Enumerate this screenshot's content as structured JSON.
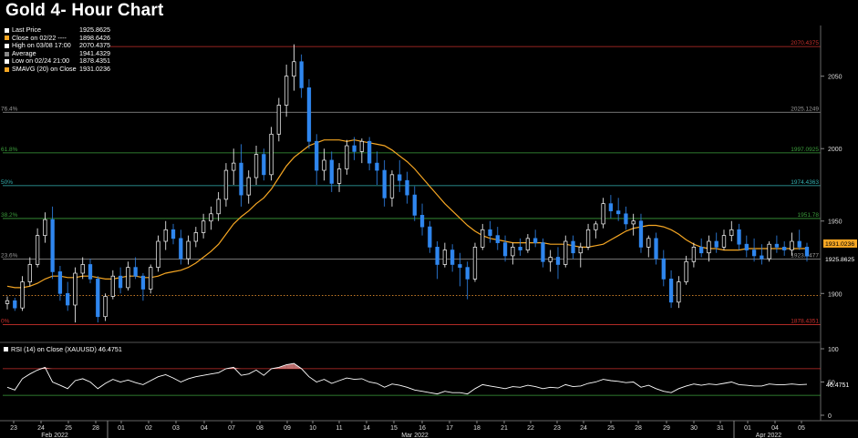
{
  "title": "Gold 4- Hour Chart",
  "legend": [
    {
      "label": "Last Price",
      "value": "1925.8625",
      "color": "#ffffff"
    },
    {
      "label": "Close on 02/22 ----",
      "value": "1898.6426",
      "color": "#f5a623"
    },
    {
      "label": "High on 03/08 17:00",
      "value": "2070.4375",
      "color": "#ffffff"
    },
    {
      "label": "Average",
      "value": "1941.4329",
      "color": "#888888"
    },
    {
      "label": "Low on 02/24 21:00",
      "value": "1878.4351",
      "color": "#ffffff"
    },
    {
      "label": "SMAVG (20)  on Close",
      "value": "1931.0236",
      "color": "#f5a623"
    }
  ],
  "rsi_legend": {
    "label": "RSI (14)  on Close (XAUUSD)",
    "value": "46.4751"
  },
  "colors": {
    "up": "#ffffff",
    "down": "#2f86ee",
    "sma": "#f5a623",
    "rsi": "#ffffff",
    "bg": "#000000"
  },
  "chart_data": [
    {
      "type": "candlestick",
      "x_tick_labels": [
        "23",
        "24",
        "25",
        "28",
        "01",
        "02",
        "03",
        "04",
        "07",
        "08",
        "09",
        "10",
        "11",
        "14",
        "15",
        "16",
        "17",
        "18",
        "21",
        "22",
        "23",
        "24",
        "25",
        "28",
        "29",
        "30",
        "31",
        "01",
        "04",
        "05"
      ],
      "x_month_labels": [
        "Feb 2022",
        "Mar 2022",
        "Apr 2022"
      ],
      "y_ticks": [
        1900,
        1950,
        2000,
        2050
      ],
      "ylim": [
        1870,
        2085
      ],
      "levels": [
        {
          "label": "",
          "value": "2070.4375",
          "color": "#c9302c",
          "y": 2070.44
        },
        {
          "label": "76.4%",
          "value": "2025.1249",
          "color": "#9a9a9a",
          "y": 2025.12
        },
        {
          "label": "61.8%",
          "value": "1997.0925",
          "color": "#3c9e3c",
          "y": 1997.09
        },
        {
          "label": "50%",
          "value": "1974.4363",
          "color": "#35b3b3",
          "y": 1974.44
        },
        {
          "label": "38.2%",
          "value": "1951.78",
          "color": "#3c9e3c",
          "y": 1951.78
        },
        {
          "label": "23.6%",
          "value": "1923.7477",
          "color": "#9a9a9a",
          "y": 1923.75
        },
        {
          "label": "",
          "value": "",
          "color": "#e08a2c",
          "y": 1898.64,
          "style": "dotted"
        },
        {
          "label": "0%",
          "value": "1878.4351",
          "color": "#c9302c",
          "y": 1878.44
        }
      ],
      "price_labels": [
        {
          "value": "1931.0236",
          "bg": "#f5a623",
          "fg": "#000000",
          "y": 1931.02
        },
        {
          "value": "1925.8625",
          "bg": "#000000",
          "fg": "#ffffff",
          "y": 1925.86
        }
      ],
      "candles_ohlc": [
        [
          1893,
          1898,
          1889,
          1895
        ],
        [
          1895,
          1897,
          1888,
          1890
        ],
        [
          1890,
          1912,
          1888,
          1908
        ],
        [
          1908,
          1925,
          1905,
          1920
        ],
        [
          1920,
          1945,
          1918,
          1940
        ],
        [
          1940,
          1956,
          1935,
          1951
        ],
        [
          1951,
          1960,
          1910,
          1915
        ],
        [
          1915,
          1919,
          1895,
          1900
        ],
        [
          1900,
          1908,
          1888,
          1892
        ],
        [
          1892,
          1918,
          1880,
          1914
        ],
        [
          1914,
          1925,
          1910,
          1920
        ],
        [
          1920,
          1924,
          1907,
          1910
        ],
        [
          1910,
          1912,
          1880,
          1884
        ],
        [
          1884,
          1900,
          1881,
          1898
        ],
        [
          1898,
          1916,
          1896,
          1912
        ],
        [
          1912,
          1918,
          1900,
          1904
        ],
        [
          1904,
          1922,
          1902,
          1918
        ],
        [
          1918,
          1925,
          1910,
          1912
        ],
        [
          1912,
          1914,
          1895,
          1903
        ],
        [
          1903,
          1920,
          1900,
          1918
        ],
        [
          1918,
          1940,
          1915,
          1936
        ],
        [
          1936,
          1950,
          1930,
          1944
        ],
        [
          1944,
          1948,
          1934,
          1938
        ],
        [
          1938,
          1944,
          1920,
          1924
        ],
        [
          1924,
          1940,
          1920,
          1936
        ],
        [
          1936,
          1946,
          1932,
          1942
        ],
        [
          1942,
          1955,
          1938,
          1950
        ],
        [
          1950,
          1960,
          1944,
          1955
        ],
        [
          1955,
          1970,
          1950,
          1965
        ],
        [
          1965,
          1990,
          1960,
          1985
        ],
        [
          1985,
          2000,
          1975,
          1990
        ],
        [
          1990,
          2003,
          1960,
          1968
        ],
        [
          1968,
          1985,
          1962,
          1980
        ],
        [
          1980,
          2002,
          1975,
          1996
        ],
        [
          1996,
          2000,
          1978,
          1982
        ],
        [
          1982,
          2015,
          1978,
          2010
        ],
        [
          2010,
          2035,
          2005,
          2030
        ],
        [
          2030,
          2058,
          2022,
          2050
        ],
        [
          2050,
          2072,
          2040,
          2060
        ],
        [
          2060,
          2065,
          2035,
          2042
        ],
        [
          2042,
          2048,
          2000,
          2005
        ],
        [
          2005,
          2010,
          1975,
          1985
        ],
        [
          1985,
          2000,
          1978,
          1992
        ],
        [
          1992,
          1998,
          1970,
          1976
        ],
        [
          1976,
          1990,
          1970,
          1986
        ],
        [
          1986,
          2006,
          1982,
          2002
        ],
        [
          2002,
          2008,
          1992,
          1998
        ],
        [
          1998,
          2007,
          1990,
          2005
        ],
        [
          2005,
          2008,
          1985,
          1990
        ],
        [
          1990,
          1998,
          1975,
          1985
        ],
        [
          1985,
          1992,
          1960,
          1966
        ],
        [
          1966,
          1985,
          1960,
          1982
        ],
        [
          1982,
          1992,
          1970,
          1978
        ],
        [
          1978,
          1984,
          1962,
          1968
        ],
        [
          1968,
          1974,
          1950,
          1954
        ],
        [
          1954,
          1962,
          1940,
          1946
        ],
        [
          1946,
          1950,
          1928,
          1932
        ],
        [
          1932,
          1936,
          1910,
          1920
        ],
        [
          1920,
          1935,
          1918,
          1930
        ],
        [
          1930,
          1934,
          1915,
          1920
        ],
        [
          1920,
          1928,
          1905,
          1918
        ],
        [
          1918,
          1922,
          1896,
          1910
        ],
        [
          1910,
          1935,
          1908,
          1932
        ],
        [
          1932,
          1948,
          1930,
          1944
        ],
        [
          1944,
          1950,
          1935,
          1940
        ],
        [
          1940,
          1946,
          1930,
          1935
        ],
        [
          1935,
          1940,
          1922,
          1926
        ],
        [
          1926,
          1935,
          1920,
          1932
        ],
        [
          1932,
          1938,
          1926,
          1930
        ],
        [
          1930,
          1941,
          1928,
          1938
        ],
        [
          1938,
          1944,
          1932,
          1935
        ],
        [
          1935,
          1938,
          1918,
          1922
        ],
        [
          1922,
          1930,
          1915,
          1925
        ],
        [
          1925,
          1932,
          1910,
          1920
        ],
        [
          1920,
          1940,
          1918,
          1936
        ],
        [
          1936,
          1940,
          1924,
          1928
        ],
        [
          1928,
          1935,
          1918,
          1932
        ],
        [
          1932,
          1948,
          1930,
          1944
        ],
        [
          1944,
          1950,
          1938,
          1948
        ],
        [
          1948,
          1966,
          1945,
          1962
        ],
        [
          1962,
          1968,
          1952,
          1957
        ],
        [
          1957,
          1966,
          1950,
          1955
        ],
        [
          1955,
          1960,
          1944,
          1948
        ],
        [
          1948,
          1955,
          1940,
          1950
        ],
        [
          1950,
          1955,
          1928,
          1932
        ],
        [
          1932,
          1940,
          1925,
          1938
        ],
        [
          1938,
          1942,
          1920,
          1924
        ],
        [
          1924,
          1930,
          1905,
          1910
        ],
        [
          1910,
          1916,
          1890,
          1894
        ],
        [
          1894,
          1912,
          1890,
          1908
        ],
        [
          1908,
          1926,
          1906,
          1922
        ],
        [
          1922,
          1935,
          1918,
          1932
        ],
        [
          1932,
          1938,
          1925,
          1928
        ],
        [
          1928,
          1940,
          1922,
          1936
        ],
        [
          1936,
          1942,
          1928,
          1932
        ],
        [
          1932,
          1944,
          1930,
          1940
        ],
        [
          1940,
          1950,
          1936,
          1944
        ],
        [
          1944,
          1948,
          1930,
          1934
        ],
        [
          1934,
          1940,
          1925,
          1930
        ],
        [
          1930,
          1938,
          1922,
          1926
        ],
        [
          1926,
          1934,
          1920,
          1924
        ],
        [
          1924,
          1936,
          1922,
          1934
        ],
        [
          1934,
          1940,
          1928,
          1932
        ],
        [
          1932,
          1936,
          1926,
          1930
        ],
        [
          1930,
          1942,
          1926,
          1936
        ],
        [
          1936,
          1944,
          1930,
          1932
        ],
        [
          1932,
          1935,
          1922,
          1925.86
        ]
      ],
      "sma20": [
        1905,
        1904,
        1904,
        1905,
        1907,
        1910,
        1912,
        1912,
        1911,
        1911,
        1912,
        1912,
        1911,
        1910,
        1910,
        1911,
        1912,
        1912,
        1911,
        1911,
        1912,
        1914,
        1915,
        1916,
        1918,
        1921,
        1925,
        1929,
        1934,
        1941,
        1948,
        1953,
        1957,
        1962,
        1966,
        1972,
        1980,
        1988,
        1994,
        1998,
        2002,
        2004,
        2006,
        2006,
        2006,
        2005,
        2006,
        2005,
        2004,
        2003,
        2002,
        1999,
        1995,
        1991,
        1986,
        1980,
        1974,
        1968,
        1962,
        1957,
        1952,
        1947,
        1943,
        1940,
        1938,
        1937,
        1936,
        1935,
        1935,
        1935,
        1935,
        1935,
        1934,
        1934,
        1934,
        1933,
        1932,
        1932,
        1933,
        1934,
        1937,
        1940,
        1943,
        1945,
        1946,
        1947,
        1947,
        1946,
        1944,
        1941,
        1937,
        1934,
        1932,
        1931,
        1931,
        1930,
        1930,
        1930,
        1931,
        1931,
        1931,
        1931,
        1931,
        1931,
        1931,
        1931,
        1931.0236
      ]
    },
    {
      "type": "line",
      "name": "RSI (14)  on Close (XAUUSD)",
      "y_ticks": [
        0,
        50,
        100
      ],
      "ylim": [
        0,
        100
      ],
      "levels": [
        70,
        30
      ],
      "last_value": "46.4751",
      "values": [
        42,
        38,
        55,
        62,
        68,
        72,
        50,
        45,
        40,
        52,
        55,
        50,
        40,
        48,
        54,
        50,
        53,
        49,
        46,
        52,
        58,
        61,
        56,
        50,
        55,
        58,
        60,
        62,
        64,
        70,
        72,
        60,
        62,
        68,
        60,
        70,
        72,
        76,
        78,
        70,
        58,
        50,
        54,
        48,
        52,
        56,
        54,
        55,
        50,
        48,
        42,
        47,
        45,
        42,
        38,
        36,
        34,
        32,
        36,
        34,
        34,
        32,
        40,
        46,
        44,
        42,
        40,
        43,
        42,
        45,
        43,
        40,
        42,
        41,
        46,
        43,
        44,
        48,
        50,
        54,
        52,
        51,
        49,
        50,
        42,
        45,
        40,
        36,
        34,
        40,
        44,
        47,
        45,
        47,
        46,
        48,
        50,
        46,
        45,
        44,
        44,
        47,
        46,
        46,
        47,
        46,
        46.4751
      ]
    }
  ]
}
